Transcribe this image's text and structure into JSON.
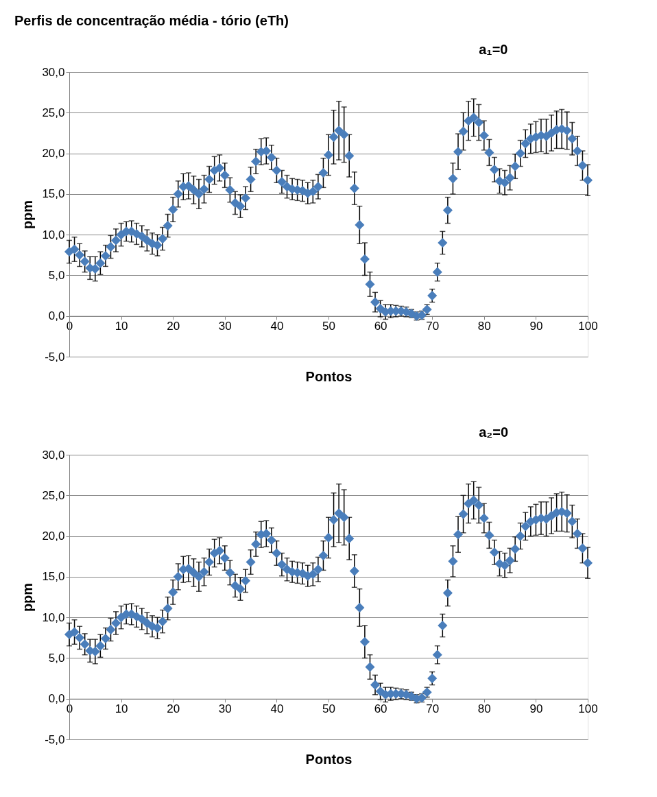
{
  "chart_data": [
    {
      "type": "scatter",
      "title": "Perfis de concentração média - tório (eTh)",
      "annotations": [
        "a₁=0"
      ],
      "xlabel": "Pontos",
      "ylabel": "ppm",
      "marker": "diamond",
      "grid": "y",
      "x": [
        0,
        1,
        2,
        3,
        4,
        5,
        6,
        7,
        8,
        9,
        10,
        11,
        12,
        13,
        14,
        15,
        16,
        17,
        18,
        19,
        20,
        21,
        22,
        23,
        24,
        25,
        26,
        27,
        28,
        29,
        30,
        31,
        32,
        33,
        34,
        35,
        36,
        37,
        38,
        39,
        40,
        41,
        42,
        43,
        44,
        45,
        46,
        47,
        48,
        49,
        50,
        51,
        52,
        53,
        54,
        55,
        56,
        57,
        58,
        59,
        60,
        61,
        62,
        63,
        64,
        65,
        66,
        67,
        68,
        69,
        70,
        71,
        72,
        73,
        74,
        75,
        76,
        77,
        78,
        79,
        80,
        81,
        82,
        83,
        84,
        85,
        86,
        87,
        88,
        89,
        90,
        91,
        92,
        93,
        94,
        95,
        96,
        97,
        98,
        99,
        100
      ],
      "series": [
        {
          "color": "#4a7ebb",
          "values": [
            7.9,
            8.2,
            7.5,
            6.7,
            5.9,
            5.8,
            6.5,
            7.4,
            8.5,
            9.3,
            10.0,
            10.4,
            10.4,
            10.1,
            9.8,
            9.3,
            8.9,
            8.7,
            9.5,
            11.1,
            13.1,
            15.0,
            15.9,
            16.0,
            15.5,
            15.0,
            15.6,
            16.8,
            17.9,
            18.2,
            17.3,
            15.5,
            13.9,
            13.5,
            14.5,
            16.8,
            19.0,
            20.2,
            20.3,
            19.5,
            17.9,
            16.5,
            15.9,
            15.6,
            15.5,
            15.4,
            15.1,
            15.3,
            15.9,
            17.6,
            19.8,
            22.0,
            22.8,
            22.3,
            19.7,
            15.7,
            11.2,
            7.0,
            3.9,
            1.7,
            0.9,
            0.5,
            0.6,
            0.6,
            0.6,
            0.5,
            0.3,
            0.0,
            0.1,
            0.8,
            2.5,
            5.4,
            9.0,
            13.0,
            16.9,
            20.2,
            22.7,
            24.0,
            24.4,
            23.8,
            22.2,
            20.1,
            18.0,
            16.6,
            16.4,
            17.0,
            18.4,
            20.0,
            21.2,
            21.8,
            22.0,
            22.2,
            22.1,
            22.5,
            22.9,
            23.0,
            22.8,
            21.8,
            20.3,
            18.5,
            16.7
          ],
          "errors": [
            1.4,
            1.5,
            1.4,
            1.3,
            1.4,
            1.5,
            1.4,
            1.3,
            1.4,
            1.4,
            1.4,
            1.2,
            1.3,
            1.3,
            1.3,
            1.3,
            1.3,
            1.3,
            1.4,
            1.4,
            1.5,
            1.6,
            1.6,
            1.6,
            1.7,
            1.8,
            1.7,
            1.6,
            1.7,
            1.6,
            1.5,
            1.5,
            1.4,
            1.4,
            1.4,
            1.5,
            1.5,
            1.6,
            1.6,
            1.5,
            1.5,
            1.4,
            1.4,
            1.3,
            1.3,
            1.3,
            1.3,
            1.4,
            1.5,
            1.8,
            2.5,
            3.3,
            3.6,
            3.4,
            2.6,
            2.0,
            2.3,
            2.0,
            1.5,
            1.2,
            1.0,
            0.9,
            0.8,
            0.7,
            0.6,
            0.6,
            0.5,
            0.5,
            0.5,
            0.6,
            0.8,
            1.1,
            1.4,
            1.6,
            1.9,
            2.2,
            2.3,
            2.4,
            2.3,
            2.2,
            1.8,
            1.6,
            1.5,
            1.5,
            1.5,
            1.5,
            1.5,
            1.6,
            1.7,
            1.8,
            1.9,
            2.0,
            2.1,
            2.2,
            2.3,
            2.4,
            2.3,
            2.0,
            1.8,
            1.8,
            1.9
          ]
        }
      ],
      "xlim": [
        0,
        100
      ],
      "xticks": [
        0,
        10,
        20,
        30,
        40,
        50,
        60,
        70,
        80,
        90,
        100
      ],
      "ylim": [
        -5,
        30
      ],
      "yticks": [
        {
          "value": -5,
          "label": "-5,0"
        },
        {
          "value": 0,
          "label": "0,0"
        },
        {
          "value": 5,
          "label": "5,0"
        },
        {
          "value": 10,
          "label": "10,0"
        },
        {
          "value": 15,
          "label": "15,0"
        },
        {
          "value": 20,
          "label": "20,0"
        },
        {
          "value": 25,
          "label": "25,0"
        },
        {
          "value": 30,
          "label": "30,0"
        }
      ]
    },
    {
      "type": "scatter",
      "annotations": [
        "a₂=0"
      ],
      "xlabel": "Pontos",
      "ylabel": "ppm",
      "marker": "diamond",
      "grid": "y",
      "x": [
        0,
        1,
        2,
        3,
        4,
        5,
        6,
        7,
        8,
        9,
        10,
        11,
        12,
        13,
        14,
        15,
        16,
        17,
        18,
        19,
        20,
        21,
        22,
        23,
        24,
        25,
        26,
        27,
        28,
        29,
        30,
        31,
        32,
        33,
        34,
        35,
        36,
        37,
        38,
        39,
        40,
        41,
        42,
        43,
        44,
        45,
        46,
        47,
        48,
        49,
        50,
        51,
        52,
        53,
        54,
        55,
        56,
        57,
        58,
        59,
        60,
        61,
        62,
        63,
        64,
        65,
        66,
        67,
        68,
        69,
        70,
        71,
        72,
        73,
        74,
        75,
        76,
        77,
        78,
        79,
        80,
        81,
        82,
        83,
        84,
        85,
        86,
        87,
        88,
        89,
        90,
        91,
        92,
        93,
        94,
        95,
        96,
        97,
        98,
        99,
        100
      ],
      "series": [
        {
          "color": "#4a7ebb",
          "values": [
            7.9,
            8.2,
            7.5,
            6.7,
            5.9,
            5.8,
            6.5,
            7.4,
            8.5,
            9.3,
            10.0,
            10.4,
            10.4,
            10.1,
            9.8,
            9.3,
            8.9,
            8.7,
            9.5,
            11.1,
            13.1,
            15.0,
            15.9,
            16.0,
            15.5,
            15.0,
            15.6,
            16.8,
            17.9,
            18.2,
            17.3,
            15.5,
            13.9,
            13.5,
            14.5,
            16.8,
            19.0,
            20.2,
            20.3,
            19.5,
            17.9,
            16.5,
            15.9,
            15.6,
            15.5,
            15.4,
            15.1,
            15.3,
            15.9,
            17.6,
            19.8,
            22.0,
            22.8,
            22.3,
            19.7,
            15.7,
            11.2,
            7.0,
            3.9,
            1.7,
            0.9,
            0.5,
            0.6,
            0.6,
            0.6,
            0.5,
            0.3,
            0.0,
            0.1,
            0.8,
            2.5,
            5.4,
            9.0,
            13.0,
            16.9,
            20.2,
            22.7,
            24.0,
            24.4,
            23.8,
            22.2,
            20.1,
            18.0,
            16.6,
            16.4,
            17.0,
            18.4,
            20.0,
            21.2,
            21.8,
            22.0,
            22.2,
            22.1,
            22.5,
            22.9,
            23.0,
            22.8,
            21.8,
            20.3,
            18.5,
            16.7
          ],
          "errors": [
            1.4,
            1.5,
            1.4,
            1.3,
            1.4,
            1.5,
            1.4,
            1.3,
            1.4,
            1.4,
            1.4,
            1.2,
            1.3,
            1.3,
            1.3,
            1.3,
            1.3,
            1.3,
            1.4,
            1.4,
            1.5,
            1.6,
            1.6,
            1.6,
            1.7,
            1.8,
            1.7,
            1.6,
            1.7,
            1.6,
            1.5,
            1.5,
            1.4,
            1.4,
            1.4,
            1.5,
            1.5,
            1.6,
            1.6,
            1.5,
            1.5,
            1.4,
            1.4,
            1.3,
            1.3,
            1.3,
            1.3,
            1.4,
            1.5,
            1.8,
            2.5,
            3.3,
            3.6,
            3.4,
            2.6,
            2.0,
            2.3,
            2.0,
            1.5,
            1.2,
            1.0,
            0.9,
            0.8,
            0.7,
            0.6,
            0.6,
            0.5,
            0.5,
            0.5,
            0.6,
            0.8,
            1.1,
            1.4,
            1.6,
            1.9,
            2.2,
            2.3,
            2.4,
            2.3,
            2.2,
            1.8,
            1.6,
            1.5,
            1.5,
            1.5,
            1.5,
            1.5,
            1.6,
            1.7,
            1.8,
            1.9,
            2.0,
            2.1,
            2.2,
            2.3,
            2.4,
            2.3,
            2.0,
            1.8,
            1.8,
            1.9
          ]
        }
      ],
      "xlim": [
        0,
        100
      ],
      "xticks": [
        0,
        10,
        20,
        30,
        40,
        50,
        60,
        70,
        80,
        90,
        100
      ],
      "ylim": [
        -5,
        30
      ],
      "yticks": [
        {
          "value": -5,
          "label": "-5,0"
        },
        {
          "value": 0,
          "label": "0,0"
        },
        {
          "value": 5,
          "label": "5,0"
        },
        {
          "value": 10,
          "label": "10,0"
        },
        {
          "value": 15,
          "label": "15,0"
        },
        {
          "value": 20,
          "label": "20,0"
        },
        {
          "value": 25,
          "label": "25,0"
        },
        {
          "value": 30,
          "label": "30,0"
        }
      ]
    }
  ]
}
